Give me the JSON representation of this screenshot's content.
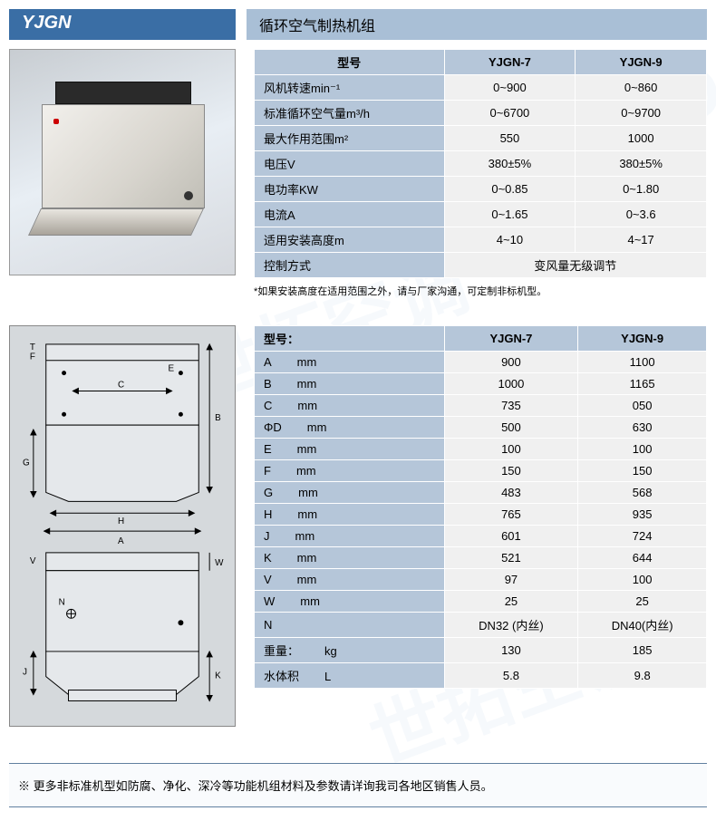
{
  "header": {
    "model_code": "YJGN",
    "title": "循环空气制热机组"
  },
  "spec_table": {
    "col_headers": [
      "型号",
      "YJGN-7",
      "YJGN-9"
    ],
    "rows": [
      {
        "label": "风机转速",
        "unit": "min⁻¹",
        "v1": "0~900",
        "v2": "0~860"
      },
      {
        "label": "标准循环空气量",
        "unit": "m³/h",
        "v1": "0~6700",
        "v2": "0~9700"
      },
      {
        "label": "最大作用范围",
        "unit": "m²",
        "v1": "550",
        "v2": "1000"
      },
      {
        "label": "电压",
        "unit": "V",
        "v1": "380±5%",
        "v2": "380±5%"
      },
      {
        "label": "电功率",
        "unit": "KW",
        "v1": "0~0.85",
        "v2": "0~1.80"
      },
      {
        "label": "电流",
        "unit": "A",
        "v1": "0~1.65",
        "v2": "0~3.6"
      },
      {
        "label": "适用安装高度",
        "unit": "m",
        "v1": "4~10",
        "v2": "4~17"
      }
    ],
    "control_row": {
      "label": "控制方式",
      "merged": "变风量无级调节"
    },
    "note": "*如果安装高度在适用范围之外，请与厂家沟通，可定制非标机型。"
  },
  "dim_table": {
    "col_headers": [
      "型号：",
      "YJGN-7",
      "YJGN-9"
    ],
    "rows": [
      {
        "label": "A",
        "unit": "mm",
        "v1": "900",
        "v2": "1100"
      },
      {
        "label": "B",
        "unit": "mm",
        "v1": "1000",
        "v2": "1165"
      },
      {
        "label": "C",
        "unit": "mm",
        "v1": "735",
        "v2": "050"
      },
      {
        "label": "ΦD",
        "unit": "mm",
        "v1": "500",
        "v2": "630"
      },
      {
        "label": "E",
        "unit": "mm",
        "v1": "100",
        "v2": "100"
      },
      {
        "label": "F",
        "unit": "mm",
        "v1": "150",
        "v2": "150"
      },
      {
        "label": "G",
        "unit": "mm",
        "v1": "483",
        "v2": "568"
      },
      {
        "label": "H",
        "unit": "mm",
        "v1": "765",
        "v2": "935"
      },
      {
        "label": "J",
        "unit": "mm",
        "v1": "601",
        "v2": "724"
      },
      {
        "label": "K",
        "unit": "mm",
        "v1": "521",
        "v2": "644"
      },
      {
        "label": "V",
        "unit": "mm",
        "v1": "97",
        "v2": "100"
      },
      {
        "label": "W",
        "unit": "mm",
        "v1": "25",
        "v2": "25"
      },
      {
        "label": "N",
        "unit": "",
        "v1": "DN32 (内丝)",
        "v2": "DN40(内丝)"
      },
      {
        "label": "重量：",
        "unit": "kg",
        "v1": "130",
        "v2": "185"
      },
      {
        "label": "水体积",
        "unit": "L",
        "v1": "5.8",
        "v2": "9.8"
      }
    ]
  },
  "footer": "※ 更多非标准机型如防腐、净化、深冷等功能机组材料及参数请详询我司各地区销售人员。",
  "diagram_letters": [
    "T",
    "F",
    "E",
    "C",
    "B",
    "G",
    "H",
    "A",
    "V",
    "W",
    "N",
    "J",
    "K"
  ],
  "colors": {
    "header_blue": "#3a6ea5",
    "header_light": "#a9bfd6",
    "row_label": "#b5c6d9",
    "row_val": "#f0f0f0",
    "diagram_bg": "#d5d9dc"
  }
}
